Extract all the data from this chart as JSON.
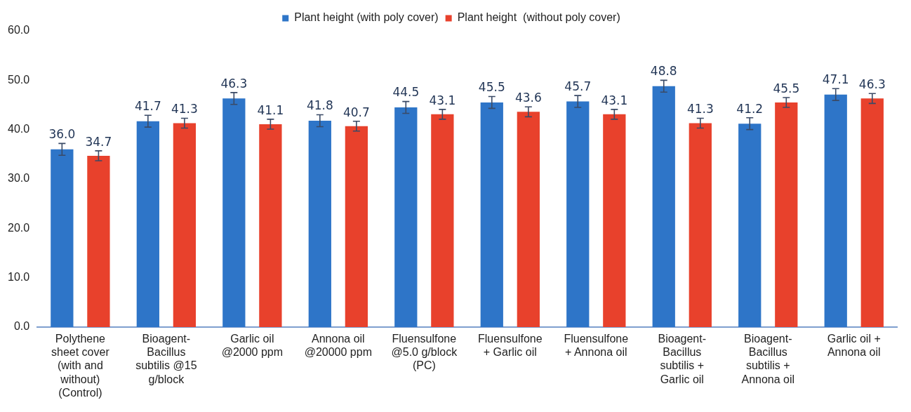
{
  "chart_data": {
    "type": "bar",
    "categories": [
      "Polythene sheet cover (with and without) (Control)",
      "Bioagent-Bacillus subtilis @15 g/block",
      "Garlic oil @2000 ppm",
      "Annona oil @20000 ppm",
      "Fluensulfone @5.0 g/block (PC)",
      "Fluensulfone + Garlic oil",
      "Fluensulfone + Annona oil",
      "Bioagent-Bacillus subtilis + Garlic oil",
      "Bioagent-Bacillus subtilis + Annona oil",
      "Garlic oil + Annona oil"
    ],
    "series": [
      {
        "name": "Plant height (with poly cover)",
        "color": "#2e75c8",
        "values": [
          36.0,
          41.7,
          46.3,
          41.8,
          44.5,
          45.5,
          45.7,
          48.8,
          41.2,
          47.1
        ],
        "errors": [
          1.2,
          1.2,
          1.2,
          1.2,
          1.2,
          1.2,
          1.2,
          1.2,
          1.2,
          1.2
        ],
        "value_labels": [
          "36.0",
          "41.7",
          "46.3",
          "41.8",
          "44.5",
          "45.5",
          "45.7",
          "48.8",
          "41.2",
          "47.1"
        ]
      },
      {
        "name": "Plant height  (without poly cover)",
        "color": "#e8412c",
        "values": [
          34.7,
          41.3,
          41.1,
          40.7,
          43.1,
          43.6,
          43.1,
          41.3,
          45.5,
          46.3
        ],
        "errors": [
          1.0,
          1.0,
          1.0,
          1.0,
          1.0,
          1.0,
          1.0,
          1.0,
          1.0,
          1.0
        ],
        "value_labels": [
          "34.7",
          "41.3",
          "41.1",
          "40.7",
          "43.1",
          "43.6",
          "43.1",
          "41.3",
          "45.5",
          "46.3"
        ]
      }
    ],
    "ylim": [
      0,
      60
    ],
    "yticks": [
      {
        "value": 0,
        "label": "0.0"
      },
      {
        "value": 10,
        "label": "10.0"
      },
      {
        "value": 20,
        "label": "20.0"
      },
      {
        "value": 30,
        "label": "30.0"
      },
      {
        "value": 40,
        "label": "40.0"
      },
      {
        "value": 50,
        "label": "50.0"
      },
      {
        "value": 60,
        "label": "60.0"
      }
    ],
    "grid": false,
    "legend": "top"
  }
}
